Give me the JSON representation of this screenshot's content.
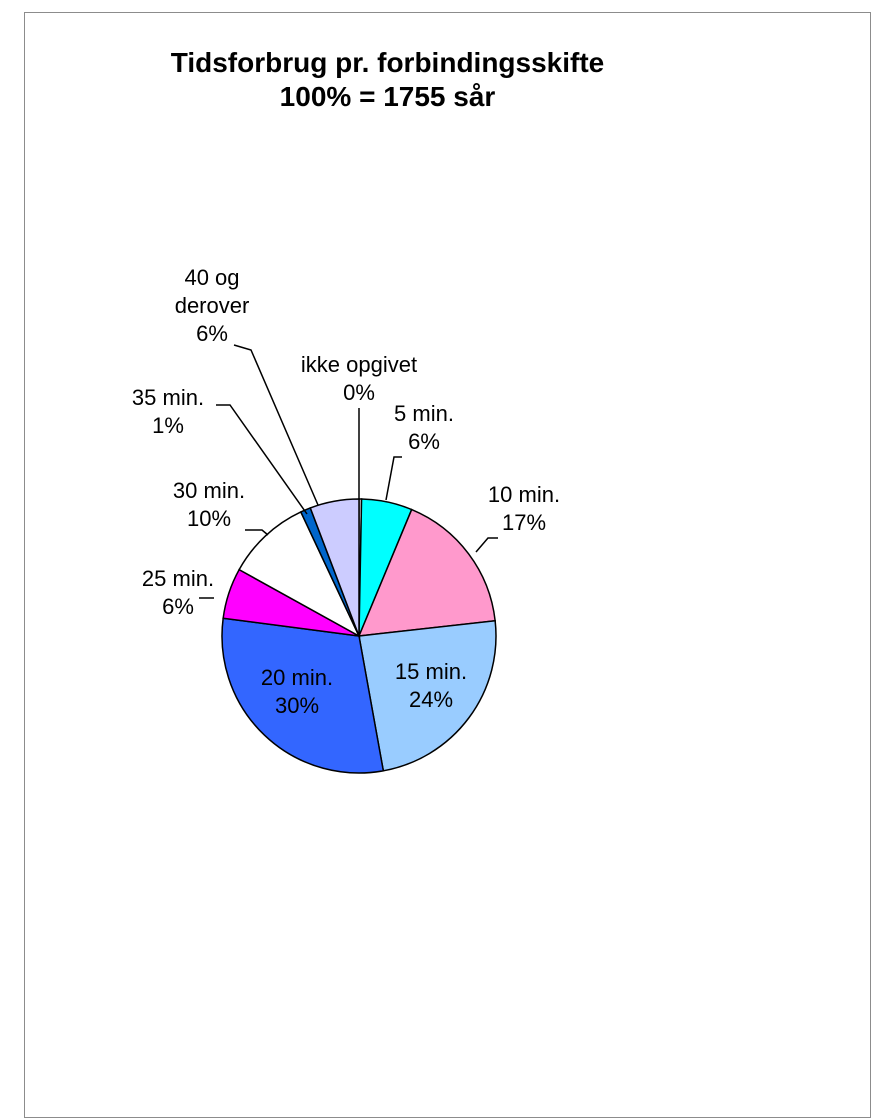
{
  "chart_data": {
    "type": "pie",
    "title": "Tidsforbrug pr. forbindingsskifte",
    "subtitle": "100% = 1755 sår",
    "slices": [
      {
        "label_lines": [
          "ikke opgivet"
        ],
        "pct_label": "0%",
        "value": 0.3,
        "color": "#ffffff"
      },
      {
        "label_lines": [
          "5 min."
        ],
        "pct_label": "6%",
        "value": 6,
        "color": "#00ffff"
      },
      {
        "label_lines": [
          "10 min."
        ],
        "pct_label": "17%",
        "value": 17,
        "color": "#ff99cc"
      },
      {
        "label_lines": [
          "15 min."
        ],
        "pct_label": "24%",
        "value": 24,
        "color": "#99ccff"
      },
      {
        "label_lines": [
          "20 min."
        ],
        "pct_label": "30%",
        "value": 30,
        "color": "#3366ff"
      },
      {
        "label_lines": [
          "25 min."
        ],
        "pct_label": "6%",
        "value": 6,
        "color": "#ff00ff"
      },
      {
        "label_lines": [
          "30 min."
        ],
        "pct_label": "10%",
        "value": 10,
        "color": "#ffffff"
      },
      {
        "label_lines": [
          "35 min."
        ],
        "pct_label": "1%",
        "value": 1.2,
        "color": "#0066cc"
      },
      {
        "label_lines": [
          "40 og",
          "derover"
        ],
        "pct_label": "6%",
        "value": 5.8,
        "color": "#ccccff"
      }
    ]
  }
}
